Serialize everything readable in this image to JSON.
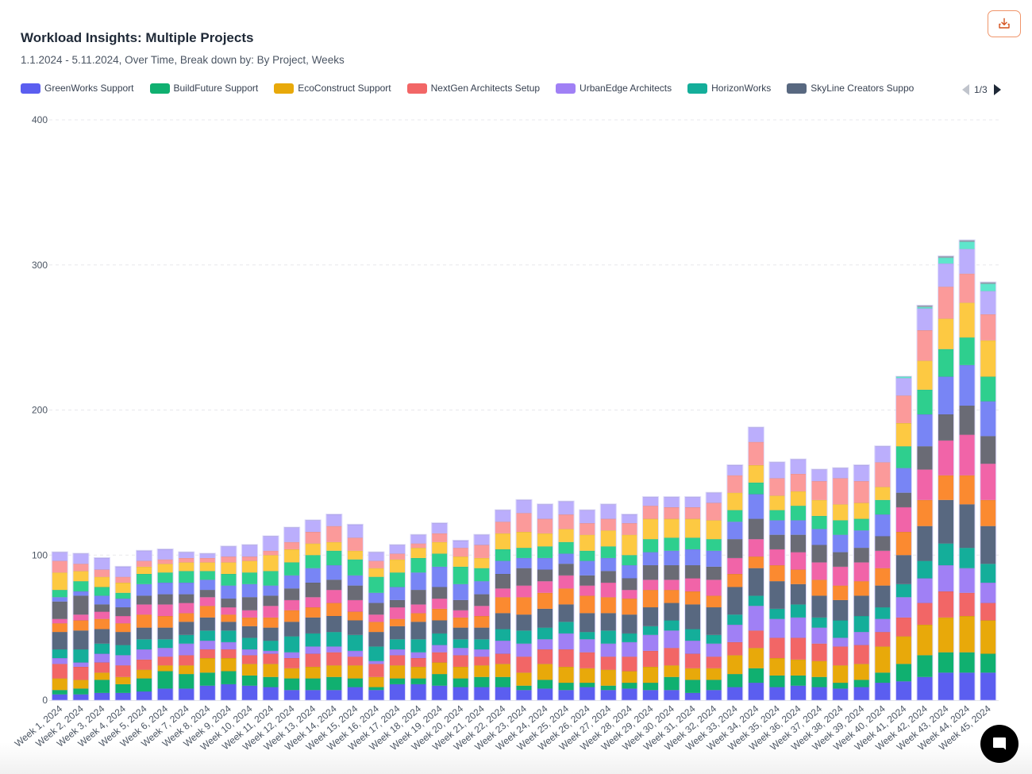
{
  "header": {
    "title": "Workload Insights: Multiple Projects",
    "subtitle": "1.1.2024 - 5.11.2024, Over Time, Break down by: By Project, Weeks",
    "export_icon": "download-icon"
  },
  "legend": {
    "items": [
      {
        "label": "GreenWorks Support",
        "color": "#5b5ef0"
      },
      {
        "label": "BuildFuture Support",
        "color": "#10b070"
      },
      {
        "label": "EcoConstruct Support",
        "color": "#e8a90a"
      },
      {
        "label": "NextGen Architects Setup",
        "color": "#f26666"
      },
      {
        "label": "UrbanEdge Architects",
        "color": "#a080f5"
      },
      {
        "label": "HorizonWorks",
        "color": "#14ae9a"
      },
      {
        "label": "SkyLine Creators Suppo",
        "color": "#586880"
      }
    ],
    "page": "1/3"
  },
  "chat": {
    "icon": "chat-bubble-icon"
  },
  "chart_data": {
    "type": "bar",
    "stacked": true,
    "title": "Workload Insights: Multiple Projects",
    "xlabel": "",
    "ylabel": "",
    "ylim": [
      0,
      400
    ],
    "yticks": [
      "0",
      "100",
      "200",
      "300",
      "400"
    ],
    "grid": true,
    "legend_position": "top",
    "categories": [
      "Week 1, 2024",
      "Week 2, 2024",
      "Week 3, 2024",
      "Week 4, 2024",
      "Week 5, 2024",
      "Week 6, 2024",
      "Week 7, 2024",
      "Week 8, 2024",
      "Week 9, 2024",
      "Week 10, 2024",
      "Week 11, 2024",
      "Week 12, 2024",
      "Week 13, 2024",
      "Week 14, 2024",
      "Week 15, 2024",
      "Week 16, 2024",
      "Week 17, 2024",
      "Week 18, 2024",
      "Week 19, 2024",
      "Week 20, 2024",
      "Week 21, 2024",
      "Week 22, 2024",
      "Week 23, 2024",
      "Week 24, 2024",
      "Week 25, 2024",
      "Week 26, 2024",
      "Week 27, 2024",
      "Week 28, 2024",
      "Week 29, 2024",
      "Week 30, 2024",
      "Week 31, 2024",
      "Week 32, 2024",
      "Week 33, 2024",
      "Week 34, 2024",
      "Week 35, 2024",
      "Week 36, 2024",
      "Week 37, 2024",
      "Week 38, 2024",
      "Week 39, 2024",
      "Week 40, 2024",
      "Week 41, 2024",
      "Week 42, 2024",
      "Week 43, 2024",
      "Week 44, 2024",
      "Week 45, 2024"
    ],
    "series": [
      {
        "name": "GreenWorks Support",
        "color": "#5b5ef0",
        "values": [
          4,
          4,
          5,
          5,
          6,
          8,
          8,
          10,
          11,
          10,
          9,
          7,
          7,
          7,
          9,
          7,
          11,
          11,
          10,
          9,
          9,
          9,
          7,
          8,
          7,
          9,
          7,
          8,
          7,
          7,
          5,
          7,
          9,
          12,
          9,
          10,
          9,
          8,
          9,
          12,
          13,
          16,
          19,
          19,
          19
        ]
      },
      {
        "name": "BuildFuture Support",
        "color": "#10b070",
        "values": [
          3,
          4,
          9,
          6,
          9,
          12,
          10,
          9,
          9,
          7,
          7,
          8,
          8,
          9,
          6,
          2,
          4,
          4,
          8,
          6,
          7,
          7,
          3,
          6,
          5,
          3,
          3,
          4,
          5,
          9,
          9,
          7,
          9,
          10,
          8,
          7,
          7,
          4,
          5,
          7,
          12,
          15,
          14,
          14,
          13
        ]
      },
      {
        "name": "EcoConstruct Support",
        "color": "#e8a90a",
        "values": [
          8,
          6,
          5,
          5,
          6,
          4,
          6,
          10,
          9,
          8,
          9,
          7,
          8,
          8,
          9,
          7,
          9,
          8,
          8,
          8,
          8,
          9,
          9,
          11,
          11,
          10,
          11,
          8,
          11,
          8,
          8,
          8,
          13,
          14,
          12,
          11,
          11,
          12,
          11,
          18,
          19,
          21,
          24,
          25,
          23
        ]
      },
      {
        "name": "NextGen Architects Setup",
        "color": "#f26666",
        "values": [
          10,
          9,
          7,
          8,
          7,
          6,
          7,
          6,
          6,
          6,
          7,
          7,
          9,
          9,
          6,
          9,
          7,
          6,
          7,
          8,
          6,
          7,
          11,
          10,
          12,
          11,
          9,
          10,
          11,
          12,
          10,
          8,
          9,
          12,
          14,
          15,
          12,
          13,
          13,
          10,
          13,
          15,
          18,
          16,
          12
        ]
      },
      {
        "name": "UrbanEdge Architects",
        "color": "#a080f5",
        "values": [
          4,
          3,
          6,
          7,
          7,
          6,
          8,
          6,
          5,
          4,
          2,
          4,
          5,
          4,
          4,
          2,
          4,
          4,
          5,
          5,
          5,
          9,
          9,
          7,
          11,
          9,
          9,
          10,
          11,
          12,
          9,
          9,
          12,
          17,
          13,
          14,
          11,
          6,
          9,
          9,
          14,
          17,
          18,
          17,
          14
        ]
      },
      {
        "name": "HorizonWorks",
        "color": "#14ae9a",
        "values": [
          6,
          9,
          7,
          7,
          7,
          6,
          6,
          7,
          8,
          8,
          7,
          11,
          9,
          10,
          11,
          10,
          7,
          9,
          8,
          6,
          7,
          8,
          9,
          8,
          8,
          5,
          9,
          6,
          6,
          7,
          8,
          6,
          7,
          7,
          7,
          9,
          7,
          12,
          11,
          8,
          9,
          12,
          15,
          14,
          13
        ]
      },
      {
        "name": "SkyLine Creators Suppo",
        "color": "#586880",
        "values": [
          12,
          13,
          10,
          9,
          8,
          8,
          9,
          9,
          6,
          8,
          9,
          10,
          11,
          11,
          10,
          10,
          9,
          12,
          9,
          8,
          8,
          11,
          11,
          13,
          12,
          13,
          12,
          13,
          13,
          12,
          17,
          19,
          19,
          19,
          19,
          14,
          15,
          14,
          14,
          15,
          20,
          24,
          30,
          30,
          26
        ]
      },
      {
        "name": "",
        "color": "#fb8a30",
        "values": [
          6,
          7,
          7,
          6,
          9,
          8,
          6,
          8,
          5,
          6,
          7,
          8,
          7,
          9,
          6,
          7,
          5,
          6,
          8,
          7,
          8,
          11,
          12,
          11,
          11,
          12,
          11,
          11,
          12,
          9,
          9,
          8,
          9,
          8,
          11,
          10,
          11,
          10,
          10,
          12,
          16,
          18,
          17,
          20,
          18
        ]
      },
      {
        "name": "",
        "color": "#f164a8",
        "values": [
          3,
          4,
          5,
          5,
          7,
          8,
          7,
          6,
          5,
          5,
          8,
          7,
          7,
          9,
          8,
          5,
          8,
          6,
          7,
          5,
          7,
          6,
          8,
          8,
          9,
          7,
          10,
          6,
          7,
          7,
          9,
          11,
          11,
          12,
          11,
          12,
          12,
          13,
          13,
          12,
          17,
          21,
          24,
          28,
          25
        ]
      },
      {
        "name": "",
        "color": "#6a6b75",
        "values": [
          12,
          13,
          5,
          6,
          6,
          7,
          6,
          5,
          6,
          9,
          7,
          8,
          10,
          7,
          10,
          8,
          5,
          10,
          8,
          7,
          8,
          10,
          12,
          8,
          8,
          7,
          8,
          8,
          10,
          10,
          9,
          9,
          13,
          14,
          10,
          12,
          12,
          10,
          10,
          10,
          10,
          16,
          18,
          20,
          19
        ]
      },
      {
        "name": "",
        "color": "#7885f5",
        "values": [
          3,
          3,
          6,
          6,
          8,
          8,
          8,
          7,
          9,
          9,
          7,
          9,
          10,
          10,
          7,
          7,
          9,
          12,
          14,
          11,
          9,
          9,
          7,
          8,
          7,
          10,
          9,
          9,
          9,
          10,
          11,
          11,
          12,
          17,
          10,
          10,
          11,
          12,
          12,
          15,
          17,
          22,
          26,
          28,
          24
        ]
      },
      {
        "name": "",
        "color": "#2ecf8e",
        "values": [
          5,
          7,
          6,
          4,
          7,
          7,
          8,
          6,
          8,
          8,
          10,
          9,
          9,
          10,
          11,
          11,
          10,
          10,
          9,
          12,
          9,
          8,
          7,
          8,
          8,
          7,
          8,
          7,
          9,
          9,
          8,
          8,
          8,
          8,
          7,
          10,
          9,
          10,
          8,
          10,
          15,
          17,
          19,
          19,
          17
        ]
      },
      {
        "name": "",
        "color": "#fdc942",
        "values": [
          12,
          7,
          7,
          7,
          5,
          6,
          6,
          6,
          8,
          8,
          11,
          9,
          8,
          6,
          6,
          6,
          9,
          7,
          8,
          7,
          7,
          11,
          11,
          9,
          9,
          11,
          11,
          14,
          14,
          13,
          13,
          13,
          12,
          12,
          10,
          10,
          11,
          11,
          11,
          9,
          16,
          20,
          21,
          24,
          25
        ]
      },
      {
        "name": "",
        "color": "#fb9a9a",
        "values": [
          8,
          5,
          5,
          4,
          4,
          3,
          3,
          3,
          4,
          3,
          3,
          5,
          8,
          11,
          9,
          5,
          4,
          3,
          6,
          6,
          9,
          8,
          13,
          10,
          10,
          8,
          8,
          8,
          9,
          8,
          8,
          12,
          12,
          16,
          12,
          12,
          13,
          18,
          15,
          17,
          19,
          21,
          22,
          20,
          18
        ]
      },
      {
        "name": "",
        "color": "#bbaefc",
        "values": [
          6,
          7,
          8,
          7,
          7,
          7,
          4,
          3,
          7,
          8,
          10,
          10,
          8,
          8,
          9,
          6,
          6,
          6,
          7,
          5,
          7,
          8,
          9,
          10,
          9,
          9,
          10,
          6,
          6,
          7,
          7,
          7,
          7,
          10,
          11,
          10,
          8,
          7,
          11,
          11,
          12,
          15,
          16,
          17,
          16
        ]
      },
      {
        "name": "",
        "color": "#5ee6cc",
        "values": [
          0,
          0,
          0,
          0,
          0,
          0,
          0,
          0,
          0,
          0,
          0,
          0,
          0,
          0,
          0,
          0,
          0,
          0,
          0,
          0,
          0,
          0,
          0,
          0,
          0,
          0,
          0,
          0,
          0,
          0,
          0,
          0,
          0,
          0,
          0,
          0,
          0,
          0,
          0,
          0,
          1,
          1,
          4,
          5,
          5
        ]
      },
      {
        "name": "",
        "color": "#9aa3b2",
        "values": [
          0,
          0,
          0,
          0,
          0,
          0,
          0,
          0,
          0,
          0,
          0,
          0,
          0,
          0,
          0,
          0,
          0,
          0,
          0,
          0,
          0,
          0,
          0,
          0,
          0,
          0,
          0,
          0,
          0,
          0,
          0,
          0,
          0,
          0,
          0,
          0,
          0,
          0,
          0,
          0,
          0,
          1,
          1,
          1,
          1
        ]
      }
    ]
  }
}
